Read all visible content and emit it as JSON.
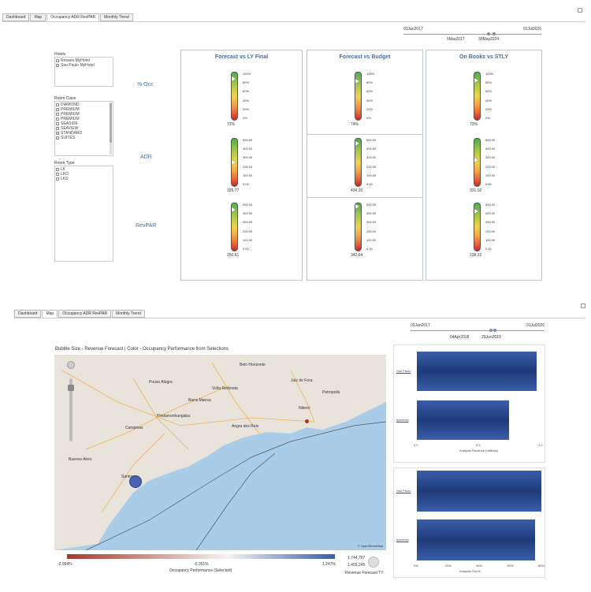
{
  "top": {
    "tabs": [
      "Dashboard",
      "Map",
      "Occupancy ADR RevPAR",
      "Monthly Trend"
    ],
    "active_tab": 2,
    "range_start": "03Jan2017",
    "range_end": "01Jul2026",
    "slider_left": "5Mar2017",
    "slider_right": "30May2024"
  },
  "filters": {
    "hotels_title": "Hotels",
    "hotels": [
      {
        "label": "Rosario MyHotel",
        "checked": false
      },
      {
        "label": "Sao Paulo MyHotel",
        "checked": false
      }
    ],
    "room_class_title": "Room Class",
    "room_classes": [
      {
        "label": "DIAMOND",
        "checked": false
      },
      {
        "label": "PREMIUM",
        "checked": false
      },
      {
        "label": "PREMIUM",
        "checked": false
      },
      {
        "label": "PREMIUM",
        "checked": false
      },
      {
        "label": "SEASIDE",
        "checked": false
      },
      {
        "label": "SEAVIEW",
        "checked": false
      },
      {
        "label": "STANDARD",
        "checked": true
      },
      {
        "label": "SUITES",
        "checked": false
      }
    ],
    "room_type_title": "Room Type",
    "room_types": [
      {
        "label": "LK",
        "checked": false
      },
      {
        "label": "LKO",
        "checked": false
      },
      {
        "label": "LKS",
        "checked": false
      }
    ]
  },
  "kpi": {
    "columns": [
      "Forecast vs LY Final",
      "Forecast vs Budget",
      "On Books vs STLY"
    ],
    "rows": [
      "% Occ",
      "ADR",
      "RevPAR"
    ],
    "occ_ticks": [
      "100%",
      "80%",
      "60%",
      "40%",
      "20%",
      "0%"
    ],
    "adr_ticks_1": [
      "500.00",
      "400.00",
      "300.00",
      "200.00",
      "100.00",
      "0.00"
    ],
    "adr_ticks_2": [
      "500.00",
      "400.00",
      "300.00",
      "200.00",
      "100.00",
      "0.00"
    ],
    "adr_ticks_3": [
      "500.00",
      "400.00",
      "300.00",
      "200.00",
      "100.00",
      "0.00"
    ],
    "rev_ticks_1": [
      "500.00",
      "400.00",
      "300.00",
      "200.00",
      "100.00",
      "0.00"
    ],
    "rev_ticks_2": [
      "500.00",
      "400.00",
      "300.00",
      "200.00",
      "100.00",
      "0.00"
    ],
    "rev_ticks_3": [
      "500.00",
      "400.00",
      "300.00",
      "200.00",
      "100.00",
      "0.00"
    ],
    "values": [
      [
        "72%",
        "74%",
        "73%"
      ],
      [
        "325.77",
        "434.20",
        "331.02"
      ],
      [
        "250.61",
        "342.64",
        "238.22"
      ]
    ],
    "levels": [
      [
        0.85,
        0.8,
        0.82
      ],
      [
        0.5,
        0.88,
        0.55
      ],
      [
        0.85,
        0.92,
        0.82
      ]
    ]
  },
  "bottom": {
    "tabs": [
      "Dashboard",
      "Map",
      "Occupancy ADR RevPAR",
      "Monthly Trend"
    ],
    "active_tab": 1,
    "range_start": "03Jan2017",
    "range_end": "01Jul2026",
    "slider_left": "04Apr2018",
    "slider_right": "29Jun2019",
    "map_title": "Bubble Size - Revenue Forecast | Color - Occupancy Performance from Selections",
    "map_cities": [
      "Belo Horizonte",
      "Pouso Alegre",
      "Rio de Janeiro",
      "Campinas",
      "Buenos Aires",
      "Santos",
      "Niteroi",
      "Angra dos Reis",
      "Pindamonhangaba",
      "Juiz de Fora",
      "Volta Redonda",
      "Petropolis",
      "Barra Mansa"
    ],
    "map_credit": "© OpenStreetMap",
    "legend_min": "-2.954%",
    "legend_mid": "-0.351%",
    "legend_max": "1.247%",
    "legend_label": "Occupancy Performance (Selected)",
    "size_max": "1,744,797",
    "size_min": "1,403,245",
    "size_label": "Revenue Forecast TY"
  },
  "chart_data": [
    {
      "type": "bar",
      "categories": [
        "Sao Paulo",
        "Ipanema"
      ],
      "values": [
        1.3,
        1.0
      ],
      "xlabel": "Analysis Revenue (millions)",
      "xticks": [
        "0.0",
        "0.5",
        "1.0"
      ]
    },
    {
      "type": "bar",
      "categories": [
        "Sao Paulo",
        "Ipanema"
      ],
      "values": [
        0.82,
        0.78
      ],
      "xlabel": "Analysis Occ%",
      "xticks": [
        "0%",
        "20%",
        "40%",
        "60%",
        "80%"
      ]
    }
  ],
  "colors": {
    "title_blue": "#3f6ea5",
    "bar_blue": "#1f3a7a",
    "legend_red": "#a33a2a",
    "legend_blue": "#3b5ba5"
  }
}
